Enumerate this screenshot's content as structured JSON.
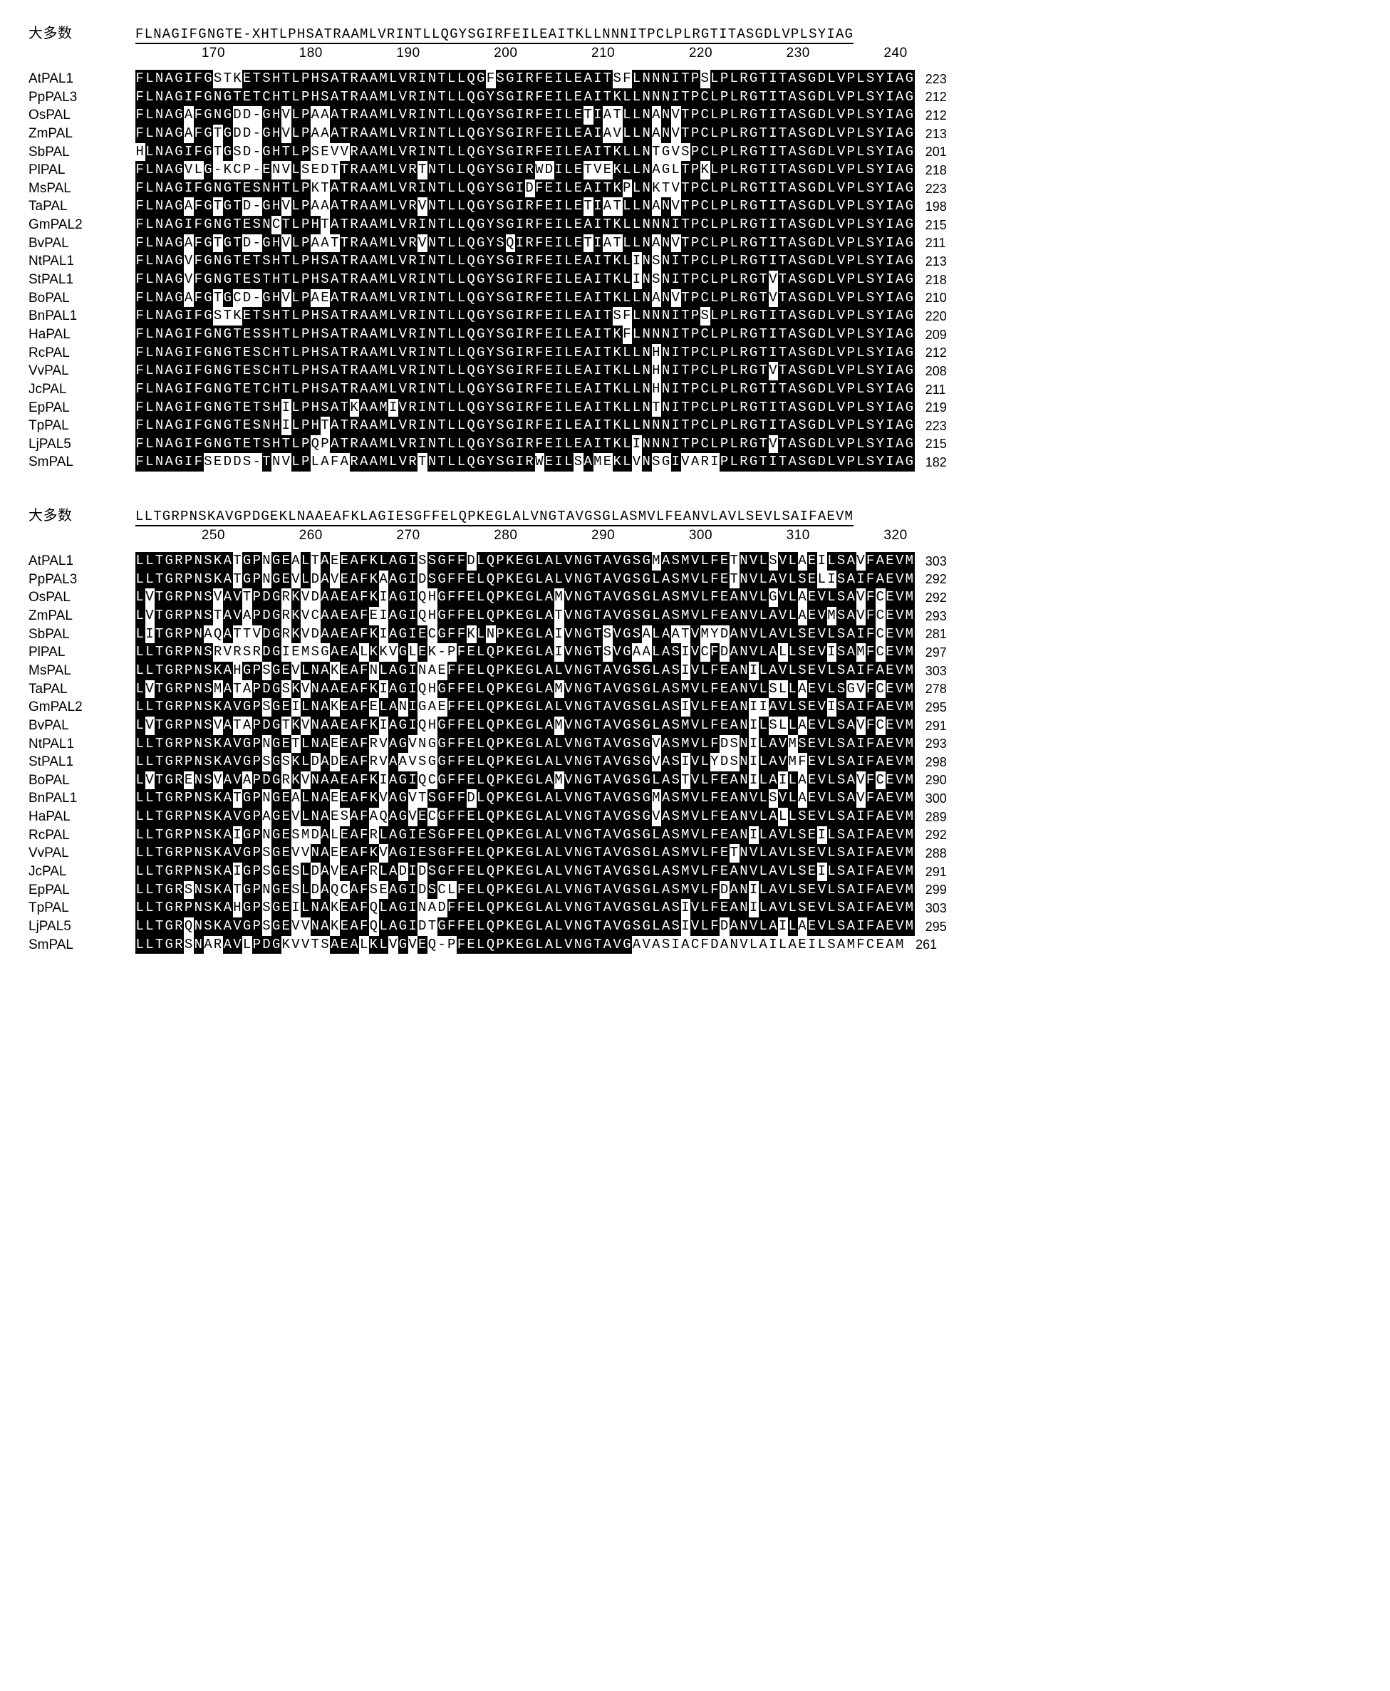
{
  "blocks": [
    {
      "consensus_label": "大多数",
      "consensus": "FLNAGIFGNGTE-XHTLPHSATRAAMLVRINTLLQGYSGIRFEILEAITKLLNNNITPCLPLRGTITASGDLVPLSYIAG",
      "ruler_start": 170,
      "ruler_end": 240,
      "ruler_step": 10,
      "rows": [
        {
          "name": "AtPAL1",
          "seq": "FLNAGIFGSTKETSHTLPHSATRAAMLVRINTLLQGFSGIRFEILEAITSFLNNNITPSLPLRGTITASGDLVPLSYIAG",
          "end": 223
        },
        {
          "name": "PpPAL3",
          "seq": "FLNAGIFGNGTETCHTLPHSATRAAMLVRINTLLQGYSGIRFEILEAITKLLNNNITPCLPLRGTITASGDLVPLSYIAG",
          "end": 212
        },
        {
          "name": "OsPAL",
          "seq": "FLNAGAFGNGDD-GHVLPAAATRAAMLVRINTLLQGYSGIRFEILETIATLLNANVTPCLPLRGTITASGDLVPLSYIAG",
          "end": 212
        },
        {
          "name": "ZmPAL",
          "seq": "FLNAGAFGTGDD-GHVLPAAATRAAMLVRINTLLQGYSGIRFEILEAIAVLLNANVTPCLPLRGTITASGDLVPLSYIAG",
          "end": 213
        },
        {
          "name": "SbPAL",
          "seq": "HLNAGIFGTGSD-GHTLPSEVVRAAMLVRINTLLQGYSGIRFEILEAITKLLNTGVSPCLPLRGTITASGDLVPLSYIAG",
          "end": 201
        },
        {
          "name": "PlPAL",
          "seq": "FLNAGVLG-KCP-ENVLSEDTTRAAMLVRTNTLLQGYSGIRWDILETVEKLLNAGLTPKLPLRGTITASGDLVPLSYIAG",
          "end": 218
        },
        {
          "name": "MsPAL",
          "seq": "FLNAGIFGNGTESNHTLPKTATRAAMLVRINTLLQGYSGIDFEILEAITKPLNKTVTPCLPLRGTITASGDLVPLSYIAG",
          "end": 223
        },
        {
          "name": "TaPAL",
          "seq": "FLNAGAFGTGTD-GHVLPAAATRAAMLVRVNTLLQGYSGIRFEILETIATLLNANVTPCLPLRGTITASGDLVPLSYIAG",
          "end": 198
        },
        {
          "name": "GmPAL2",
          "seq": "FLNAGIFGNGTESNCTLPHTATRAAMLVRINTLLQGYSGIRFEILEAITKLLNNNITPCLPLRGTITASGDLVPLSYIAG",
          "end": 215
        },
        {
          "name": "BvPAL",
          "seq": "FLNAGAFGTGTD-GHVLPAATTRAAMLVRVNTLLQGYSQIRFEILETIATLLNANVTPCLPLRGTITASGDLVPLSYIAG",
          "end": 211
        },
        {
          "name": "NtPAL1",
          "seq": "FLNAGVFGNGTETSHTLPHSATRAAMLVRINTLLQGYSGIRFEILEAITKLINSNITPCLPLRGTITASGDLVPLSYIAG",
          "end": 213
        },
        {
          "name": "StPAL1",
          "seq": "FLNAGVFGNGTESTHTLPHSATRAAMLVRINTLLQGYSGIRFEILEAITKLINSNITPCLPLRGTVTASGDLVPLSYIAG",
          "end": 218
        },
        {
          "name": "BoPAL",
          "seq": "FLNAGAFGTGCD-GHVLPAEATRAAMLVRINTLLQGYSGIRFEILEAITKLLNANVTPCLPLRGTVTASGDLVPLSYIAG",
          "end": 210
        },
        {
          "name": "BnPAL1",
          "seq": "FLNAGIFGSTKETSHTLPHSATRAAMLVRINTLLQGYSGIRFEILEAITSFLNNNITPSLPLRGTITASGDLVPLSYIAG",
          "end": 220
        },
        {
          "name": "HaPAL",
          "seq": "FLNAGIFGNGTESSHTLPHSATRAAMLVRINTLLQGYSGIRFEILEAITKFLNNNITPCLPLRGTITASGDLVPLSYIAG",
          "end": 209
        },
        {
          "name": "RcPAL",
          "seq": "FLNAGIFGNGTESCHTLPHSATRAAMLVRINTLLQGYSGIRFEILEAITKLLNHNITPCLPLRGTITASGDLVPLSYIAG",
          "end": 212
        },
        {
          "name": "VvPAL",
          "seq": "FLNAGIFGNGTESCHTLPHSATRAAMLVRINTLLQGYSGIRFEILEAITKLLNHNITPCLPLRGTVTASGDLVPLSYIAG",
          "end": 208
        },
        {
          "name": "JcPAL",
          "seq": "FLNAGIFGNGTETCHTLPHSATRAAMLVRINTLLQGYSGIRFEILEAITKLLNHNITPCLPLRGTITASGDLVPLSYIAG",
          "end": 211
        },
        {
          "name": "EpPAL",
          "seq": "FLNAGIFGNGTETSHILPHSATKAAMIVRINTLLQGYSGIRFEILEAITKLLNTNITPCLPLRGTITASGDLVPLSYIAG",
          "end": 219
        },
        {
          "name": "TpPAL",
          "seq": "FLNAGIFGNGTESNHILPHTATRAAMLVRINTLLQGYSGIRFEILEAITKLLNNNITPCLPLRGTITASGDLVPLSYIAG",
          "end": 223
        },
        {
          "name": "LjPAL5",
          "seq": "FLNAGIFGNGTETSHTLPQPATRAAMLVRINTLLQGYSGIRFEILEAITKLINNNITPCLPLRGTVTASGDLVPLSYIAG",
          "end": 215
        },
        {
          "name": "SmPAL",
          "seq": "FLNAGIFSEDDS-TNVLPLAFARAAMLVRTNTLLQGYSGIRWEILSAMEKLVNSGIVARIPLRGTITASGDLVPLSYIAG",
          "end": 182
        }
      ]
    },
    {
      "consensus_label": "大多数",
      "consensus": "LLTGRPNSKAVGPDGEKLNAAEAFKLAGIESGFFELQPKEGLALVNGTAVGSGLASMVLFEANVLAVLSEVLSAIFAEVM",
      "ruler_start": 250,
      "ruler_end": 320,
      "ruler_step": 10,
      "rows": [
        {
          "name": "AtPAL1",
          "seq": "LLTGRPNSKATGPNGEALTAEEAFKLAGISSGFFDLQPKEGLALVNGTAVGSGMASMVLFETNVLSVLAEILSAVFAEVM",
          "end": 303
        },
        {
          "name": "PpPAL3",
          "seq": "LLTGRPNSKATGPNGEVLDAVEAFKAAGIDSGFFELQPKEGLALVNGTAVGSGLASMVLFETNVLAVLSELISAIFAEVM",
          "end": 292
        },
        {
          "name": "OsPAL",
          "seq": "LVTGRPNSVAVTPDGRKVDAAEAFKIAGIQHGFFELQPKEGLAMVNGTAVGSGLASMVLFEANVLGVLAEVLSAVFCEVM",
          "end": 292
        },
        {
          "name": "ZmPAL",
          "seq": "LVTGRPNSTAVAPDGRKVCAAEAFEIAGIQHGFFELQPKEGLATVNGTAVGSGLASMVLFEANVLAVLAEVMSAVFCEVM",
          "end": 293
        },
        {
          "name": "SbPAL",
          "seq": "LITGRPNAQATTVDGRKVDAAEAFKIAGIECGFFKLNPKEGLAIVNGTSVGSALAATVMYDANVLAVLSEVLSAIFCEVM",
          "end": 281
        },
        {
          "name": "PlPAL",
          "seq": "LLTGRPNSRVRSRDGIEMSGAEALKKVGLEK-PFELQPKEGLAIVNGTSVGAALASIVCFDANVLALLSEVISAMFCEVM",
          "end": 297
        },
        {
          "name": "MsPAL",
          "seq": "LLTGRPNSKAHGPSGEVLNAKEAFNLAGINAEFFELQPKEGLALVNGTAVGSGLASIVLFEANILAVLSEVLSAIFAEVM",
          "end": 303
        },
        {
          "name": "TaPAL",
          "seq": "LVTGRPNSMATAPDGSKVNAAEAFKIAGIQHGFFELQPKEGLAMVNGTAVGSGLASMVLFEANVLSLLAEVLSGVFCEVM",
          "end": 278
        },
        {
          "name": "GmPAL2",
          "seq": "LLTGRPNSKAVGPSGEILNAKEAFELANIGAEFFELQPKEGLALVNGTAVGSGLASIVLFEANIIAVLSEVISAIFAEVM",
          "end": 295
        },
        {
          "name": "BvPAL",
          "seq": "LVTGRPNSVATAPDGTKVNAAEAFKIAGIQHGFFELQPKEGLAMVNGTAVGSGLASMVLFEANILSLLAEVLSAVFCEVM",
          "end": 291
        },
        {
          "name": "NtPAL1",
          "seq": "LLTGRPNSKAVGPNGETLNAEEAFRVAGVNGGFFELQPKEGLALVNGTAVGSGVASMVLFDSNILAVMSEVLSAIFAEVM",
          "end": 293
        },
        {
          "name": "StPAL1",
          "seq": "LLTGRPNSKAVGPSGSKLDADEAFRVAAVSGGFFELQPKEGLALVNGTAVGSGVASIVLYDSNILAVMFEVLSAIFAEVM",
          "end": 298
        },
        {
          "name": "BoPAL",
          "seq": "LVTGRENSVAVAPDGRKVNAAEAFKIAGIQCGFFELQPKEGLAMVNGTAVGSGLASTVLFEANILAILAEVLSAVFCEVM",
          "end": 290
        },
        {
          "name": "BnPAL1",
          "seq": "LLTGRPNSKATGPNGEALNAEEAFKVAGVTSGFFDLQPKEGLALVNGTAVGSGMASMVLFEANVLSVLAEVLSAVFAEVM",
          "end": 300
        },
        {
          "name": "HaPAL",
          "seq": "LLTGRPNSKAVGPAGEVLNAESAFAQAGVECGFFELQPKEGLALVNGTAVGSGVASMVLFEANVLALLSEVLSAIFAEVM",
          "end": 289
        },
        {
          "name": "RcPAL",
          "seq": "LLTGRPNSKAIGPNGESMDALEAFRLAGIESGFFELQPKEGLALVNGTAVGSGLASMVLFEANILAVLSEILSAIFAEVM",
          "end": 292
        },
        {
          "name": "VvPAL",
          "seq": "LLTGRPNSKAVGPSGEVVNAEEAFKVAGIESGFFELQPKEGLALVNGTAVGSGLASMVLFETNVLAVLSEVLSAIFAEVM",
          "end": 288
        },
        {
          "name": "JcPAL",
          "seq": "LLTGRPNSKAIGPSGESLDAVEAFRLADIDSGFFELQPKEGLALVNGTAVGSGLASMVLFEANVLAVLSEILSAIFAEVM",
          "end": 291
        },
        {
          "name": "EpPAL",
          "seq": "LLTGRSNSKATGPNGESLDAQCAFSEAGIDSCLFELQPKEGLALVNGTAVGSGLASMVLFDANILAVLSEVLSAIFAEVM",
          "end": 299
        },
        {
          "name": "TpPAL",
          "seq": "LLTGRPNSKAHGPSGEILNAKEAFQLAGINADFFELQPKEGLALVNGTAVGSGLASIVLFEANILAVLSEVLSAIFAEVM",
          "end": 303
        },
        {
          "name": "LjPAL5",
          "seq": "LLTGRQNSKAVGPSGEVVNAKEAFQLAGIDTGFFELQPKEGLALVNGTAVGSGLASIVLFDANVLAILAEVLSAIFAEVM",
          "end": 295
        },
        {
          "name": "SmPAL",
          "seq": "LLTGRSNARAVLPDGKVVTSAEALKLVGVEQ-PFELQPKEGLALVNGTAVGAVASIACFDANVLAILAEILSAMFCEAM",
          "end": 261
        }
      ]
    }
  ],
  "style": {
    "conserved_bg": "#000000",
    "conserved_fg": "#ffffff",
    "mismatch_bg": "#ffffff",
    "mismatch_fg": "#000000",
    "page_bg": "#ffffff",
    "char_width_em": 0.72,
    "seq_font_size": 19,
    "label_font_size": 19,
    "ruler_font_size": 17
  }
}
